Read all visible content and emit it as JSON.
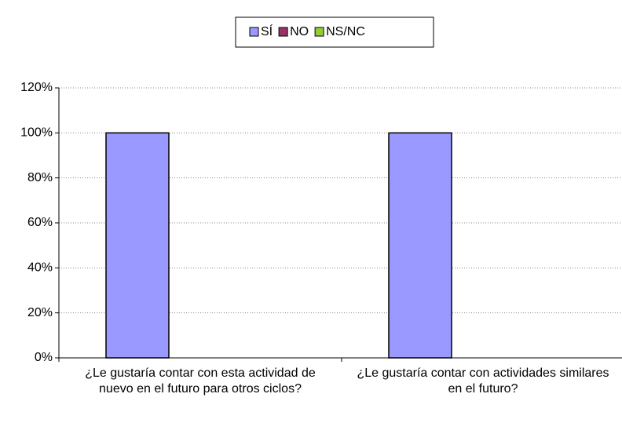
{
  "chart_data": {
    "type": "bar",
    "categories": [
      "¿Le gustaría contar con esta actividad de nuevo en el futuro para otros ciclos?",
      "¿Le gustaría contar con actividades similares en el futuro?"
    ],
    "series": [
      {
        "name": "SÍ",
        "color": "#9999ff",
        "values": [
          100,
          100
        ]
      },
      {
        "name": "NO",
        "color": "#993366",
        "values": [
          0,
          0
        ]
      },
      {
        "name": "NS/NC",
        "color": "#99cc33",
        "values": [
          0,
          0
        ]
      }
    ],
    "ylim": [
      0,
      120
    ],
    "yticks": [
      {
        "value": 0,
        "label": "0%"
      },
      {
        "value": 20,
        "label": "20%"
      },
      {
        "value": 40,
        "label": "40%"
      },
      {
        "value": 60,
        "label": "60%"
      },
      {
        "value": 80,
        "label": "80%"
      },
      {
        "value": 100,
        "label": "100%"
      },
      {
        "value": 120,
        "label": "120%"
      }
    ],
    "grid": true,
    "legend": "top"
  }
}
